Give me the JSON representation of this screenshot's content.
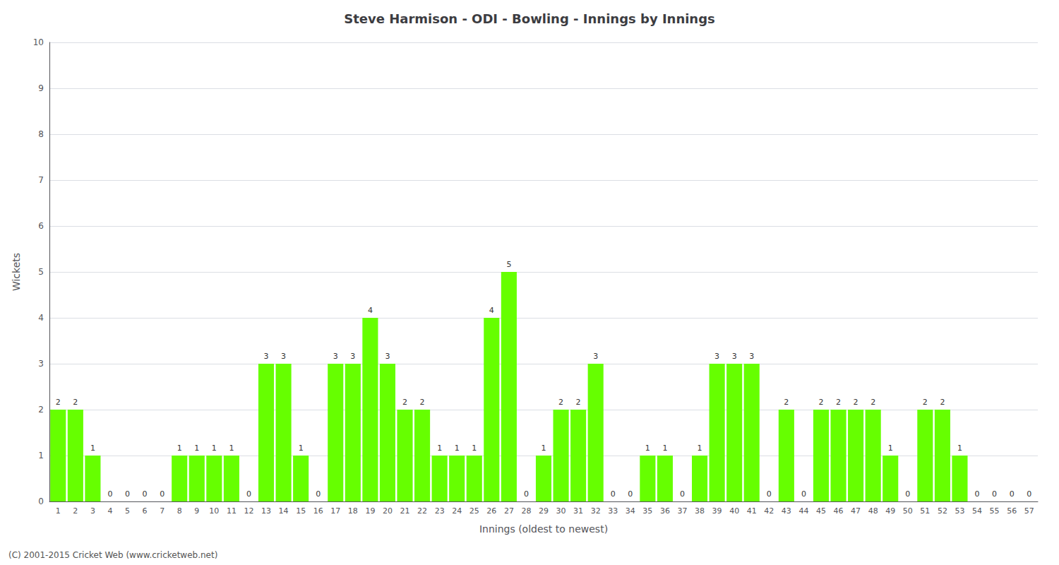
{
  "chart_data": {
    "type": "bar",
    "title": "Steve Harmison - ODI - Bowling - Innings by Innings",
    "xlabel": "Innings (oldest to newest)",
    "ylabel": "Wickets",
    "annotations": [
      "(C) 2001-2015 Cricket Web (www.cricketweb.net)"
    ],
    "categories": [
      "1",
      "2",
      "3",
      "4",
      "5",
      "6",
      "7",
      "8",
      "9",
      "10",
      "11",
      "12",
      "13",
      "14",
      "15",
      "16",
      "17",
      "18",
      "19",
      "20",
      "21",
      "22",
      "23",
      "24",
      "25",
      "26",
      "27",
      "28",
      "29",
      "30",
      "31",
      "32",
      "33",
      "34",
      "35",
      "36",
      "37",
      "38",
      "39",
      "40",
      "41",
      "42",
      "43",
      "44",
      "45",
      "46",
      "47",
      "48",
      "49",
      "50",
      "51",
      "52",
      "53",
      "54",
      "55",
      "56",
      "57"
    ],
    "values": [
      2,
      2,
      1,
      0,
      0,
      0,
      0,
      1,
      1,
      1,
      1,
      0,
      3,
      3,
      1,
      0,
      3,
      3,
      4,
      3,
      2,
      2,
      1,
      1,
      1,
      4,
      5,
      0,
      1,
      2,
      2,
      3,
      0,
      0,
      1,
      1,
      0,
      1,
      3,
      3,
      3,
      0,
      2,
      0,
      2,
      2,
      2,
      2,
      1,
      0,
      2,
      2,
      1,
      0,
      0,
      0,
      0
    ],
    "color": "#66ff00",
    "ylim": [
      0,
      10
    ],
    "yticks": [
      0,
      1,
      2,
      3,
      4,
      5,
      6,
      7,
      8,
      9,
      10
    ],
    "grid": true,
    "data_labels": true
  }
}
